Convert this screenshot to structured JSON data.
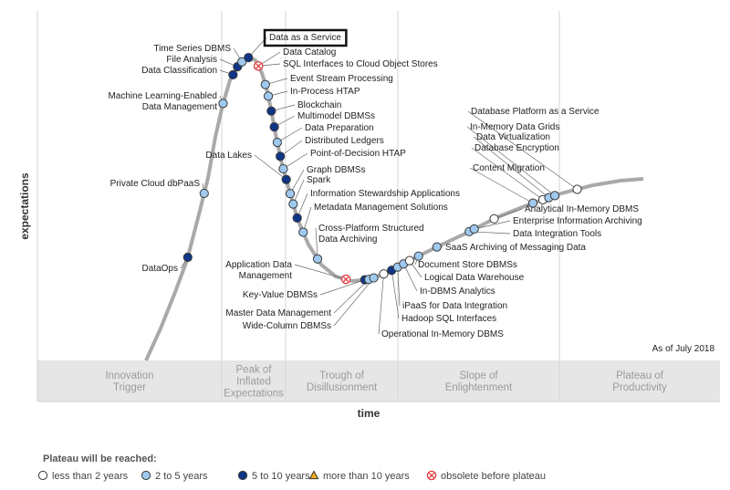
{
  "chart_data": {
    "type": "scatter",
    "title": "",
    "xlabel": "time",
    "ylabel": "expectations",
    "as_of": "As of July 2018",
    "phases": [
      {
        "lines": [
          "Innovation",
          "Trigger"
        ]
      },
      {
        "lines": [
          "Peak of",
          "Inflated",
          "Expectations"
        ]
      },
      {
        "lines": [
          "Trough of",
          "Disillusionment"
        ]
      },
      {
        "lines": [
          "Slope of",
          "Enlightenment"
        ]
      },
      {
        "lines": [
          "Plateau of",
          "Productivity"
        ]
      }
    ],
    "legend": {
      "title": "Plateau will be reached:",
      "items": [
        {
          "key": "lt2",
          "label": "less than 2 years",
          "color": "#ffffff",
          "shape": "circle"
        },
        {
          "key": "2to5",
          "label": "2 to 5 years",
          "color": "#9fc9ef",
          "shape": "circle"
        },
        {
          "key": "5to10",
          "label": "5 to 10 years",
          "color": "#0f3587",
          "shape": "circle"
        },
        {
          "key": "gt10",
          "label": "more than 10 years",
          "color": "#f2a91c",
          "shape": "triangle"
        },
        {
          "key": "obs",
          "label": "obsolete before plateau",
          "color": "#e0383c",
          "shape": "obsolete"
        }
      ]
    },
    "highlight": "Data as a Service",
    "points": [
      {
        "name": "DataOps",
        "t": 0.084,
        "cat": "5to10"
      },
      {
        "name": "Private Cloud dbPaaS",
        "t": 0.117,
        "cat": "2to5"
      },
      {
        "name": "Machine Learning-Enabled Data Management",
        "t": 0.155,
        "cat": "2to5"
      },
      {
        "name": "Data Classification",
        "t": 0.175,
        "cat": "5to10"
      },
      {
        "name": "File Analysis",
        "t": 0.184,
        "cat": "5to10"
      },
      {
        "name": "Time Series DBMS",
        "t": 0.193,
        "cat": "2to5"
      },
      {
        "name": "Data as a Service",
        "t": 0.206,
        "cat": "5to10"
      },
      {
        "name": "Data Catalog",
        "t": 0.226,
        "cat": "2to5"
      },
      {
        "name": "SQL Interfaces to Cloud Object Stores",
        "t": 0.226,
        "cat": "obs"
      },
      {
        "name": "Event Stream Processing",
        "t": 0.24,
        "cat": "2to5"
      },
      {
        "name": "In-Process HTAP",
        "t": 0.246,
        "cat": "2to5"
      },
      {
        "name": "Blockchain",
        "t": 0.252,
        "cat": "5to10"
      },
      {
        "name": "Multimodel DBMSs",
        "t": 0.258,
        "cat": "5to10"
      },
      {
        "name": "Data Preparation",
        "t": 0.264,
        "cat": "2to5"
      },
      {
        "name": "Distributed Ledgers",
        "t": 0.27,
        "cat": "5to10"
      },
      {
        "name": "Point-of-Decision HTAP",
        "t": 0.276,
        "cat": "2to5"
      },
      {
        "name": "Data Lakes",
        "t": 0.282,
        "cat": "5to10"
      },
      {
        "name": "Graph DBMSs",
        "t": 0.29,
        "cat": "2to5"
      },
      {
        "name": "Spark",
        "t": 0.296,
        "cat": "2to5"
      },
      {
        "name": "Information Stewardship Applications",
        "t": 0.304,
        "cat": "5to10"
      },
      {
        "name": "Metadata Management Solutions",
        "t": 0.316,
        "cat": "2to5"
      },
      {
        "name": "Cross-Platform Structured Data Archiving",
        "t": 0.345,
        "cat": "2to5"
      },
      {
        "name": "Application Data Management",
        "t": 0.402,
        "cat": "obs"
      },
      {
        "name": "Key-Value DBMSs",
        "t": 0.44,
        "cat": "5to10"
      },
      {
        "name": "Master Data Management",
        "t": 0.448,
        "cat": "2to5"
      },
      {
        "name": "Wide-Column DBMSs",
        "t": 0.458,
        "cat": "2to5"
      },
      {
        "name": "Operational In-Memory DBMS",
        "t": 0.478,
        "cat": "lt2"
      },
      {
        "name": "Hadoop SQL Interfaces",
        "t": 0.494,
        "cat": "5to10"
      },
      {
        "name": "iPaaS for Data Integration",
        "t": 0.506,
        "cat": "2to5"
      },
      {
        "name": "In-DBMS Analytics",
        "t": 0.518,
        "cat": "2to5"
      },
      {
        "name": "Logical Data Warehouse",
        "t": 0.53,
        "cat": "lt2"
      },
      {
        "name": "Document Store DBMSs",
        "t": 0.548,
        "cat": "2to5"
      },
      {
        "name": "SaaS Archiving of Messaging Data",
        "t": 0.585,
        "cat": "2to5"
      },
      {
        "name": "Data Integration Tools",
        "t": 0.65,
        "cat": "2to5"
      },
      {
        "name": "Enterprise Information Archiving",
        "t": 0.66,
        "cat": "2to5"
      },
      {
        "name": "Analytical In-Memory DBMS",
        "t": 0.7,
        "cat": "lt2"
      },
      {
        "name": "Content Migration",
        "t": 0.778,
        "cat": "2to5"
      },
      {
        "name": "Database Encryption",
        "t": 0.798,
        "cat": "lt2"
      },
      {
        "name": "Data Virtualization",
        "t": 0.81,
        "cat": "2to5"
      },
      {
        "name": "In-Memory Data Grids",
        "t": 0.822,
        "cat": "2to5"
      },
      {
        "name": "Database Platform as a Service",
        "t": 0.867,
        "cat": "lt2"
      }
    ]
  }
}
